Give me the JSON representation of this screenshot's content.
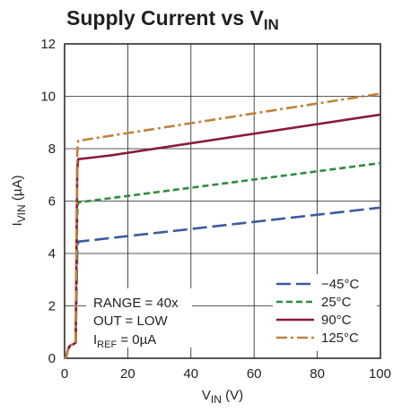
{
  "chart_data": {
    "type": "line",
    "title": "Supply Current vs V",
    "title_sub": "IN",
    "xlabel": "V",
    "xlabel_sub": "IN",
    "xlabel_unit": " (V)",
    "ylabel": "I",
    "ylabel_sub": "VIN",
    "ylabel_unit": " (µA)",
    "xlim": [
      0,
      100
    ],
    "ylim": [
      0,
      12
    ],
    "xticks": [
      "0",
      "20",
      "40",
      "60",
      "80",
      "100"
    ],
    "yticks": [
      "0",
      "2",
      "4",
      "6",
      "8",
      "10",
      "12"
    ],
    "grid": true,
    "legend_position": "bottom-right",
    "annotation": {
      "line1": "RANGE = 40x",
      "line2": "OUT = LOW",
      "line3_main": "I",
      "line3_sub": "REF",
      "line3_rest": " = 0µA"
    },
    "series": [
      {
        "name": "−45°C",
        "color": "#3a5ba0",
        "dash": "long-dash",
        "x": [
          0,
          0.5,
          1,
          1.5,
          2,
          3,
          3.5,
          4,
          4.3,
          100
        ],
        "y": [
          0,
          0.05,
          0.3,
          0.45,
          0.5,
          0.55,
          0.6,
          4.0,
          4.45,
          5.75
        ]
      },
      {
        "name": "25°C",
        "color": "#2e8b3e",
        "dash": "short-dash",
        "x": [
          0,
          0.5,
          1,
          1.5,
          2,
          3,
          3.5,
          4,
          4.3,
          100
        ],
        "y": [
          0,
          0.05,
          0.3,
          0.45,
          0.5,
          0.55,
          0.6,
          5.5,
          5.95,
          7.45
        ]
      },
      {
        "name": "90°C",
        "color": "#8b1a3c",
        "dash": "solid",
        "x": [
          0,
          0.5,
          1,
          1.5,
          2,
          3,
          3.5,
          4,
          4.3,
          8,
          15,
          100
        ],
        "y": [
          0,
          0.05,
          0.3,
          0.45,
          0.5,
          0.55,
          0.6,
          7.2,
          7.6,
          7.65,
          7.75,
          9.3
        ]
      },
      {
        "name": "125°C",
        "color": "#c1813a",
        "dash": "dash-dot",
        "x": [
          0,
          0.5,
          1,
          1.5,
          2,
          3,
          3.5,
          4,
          4.3,
          100
        ],
        "y": [
          0,
          0.05,
          0.3,
          0.45,
          0.5,
          0.55,
          0.6,
          7.9,
          8.3,
          10.1
        ]
      }
    ]
  }
}
